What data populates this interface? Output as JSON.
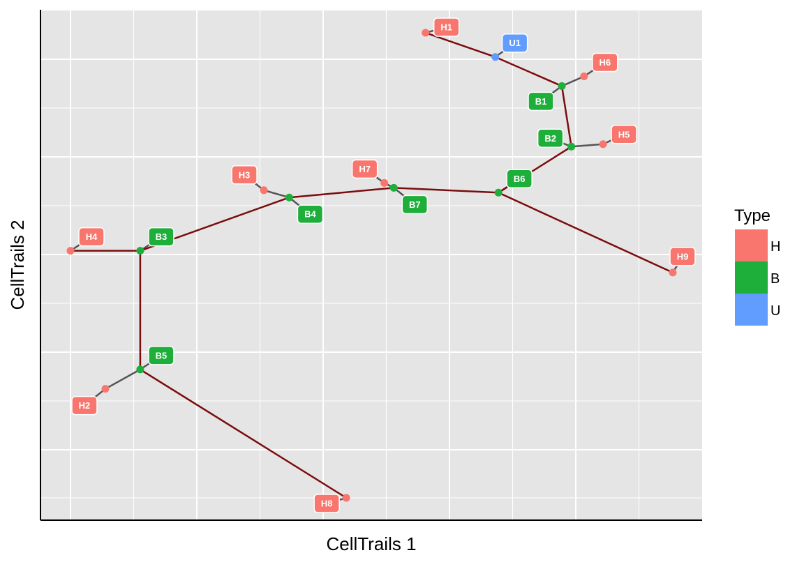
{
  "chart_data": {
    "type": "scatter",
    "xlabel": "CellTrails 1",
    "ylabel": "CellTrails 2",
    "grid": true,
    "tick_labels_shown": false,
    "legend": {
      "title": "Type",
      "placement": "right",
      "entries": [
        {
          "label": "H",
          "color": "#F8766D"
        },
        {
          "label": "B",
          "color": "#1EAE3A"
        },
        {
          "label": "U",
          "color": "#619CFF"
        }
      ]
    },
    "xlim": [
      -0.45,
      10.0
    ],
    "ylim": [
      -0.4,
      10.0
    ],
    "nodes": [
      {
        "id": "H1",
        "type": "H",
        "x": 5.6,
        "y": 9.6
      },
      {
        "id": "U1",
        "type": "U",
        "x": 6.7,
        "y": 9.1
      },
      {
        "id": "H6",
        "type": "H",
        "x": 8.1,
        "y": 8.7
      },
      {
        "id": "B1",
        "type": "B",
        "x": 7.75,
        "y": 8.5
      },
      {
        "id": "H5",
        "type": "H",
        "x": 8.4,
        "y": 7.3
      },
      {
        "id": "B2",
        "type": "B",
        "x": 7.9,
        "y": 7.25
      },
      {
        "id": "B6",
        "type": "B",
        "x": 6.75,
        "y": 6.3
      },
      {
        "id": "H7",
        "type": "H",
        "x": 4.95,
        "y": 6.5
      },
      {
        "id": "B7",
        "type": "B",
        "x": 5.1,
        "y": 6.4
      },
      {
        "id": "H3",
        "type": "H",
        "x": 3.05,
        "y": 6.35
      },
      {
        "id": "B4",
        "type": "B",
        "x": 3.45,
        "y": 6.2
      },
      {
        "id": "H4",
        "type": "H",
        "x": 0.0,
        "y": 5.1
      },
      {
        "id": "B3",
        "type": "B",
        "x": 1.1,
        "y": 5.1
      },
      {
        "id": "H9",
        "type": "H",
        "x": 9.5,
        "y": 4.65
      },
      {
        "id": "B5",
        "type": "B",
        "x": 1.1,
        "y": 2.65
      },
      {
        "id": "H2",
        "type": "H",
        "x": 0.55,
        "y": 2.25
      },
      {
        "id": "H8",
        "type": "H",
        "x": 4.35,
        "y": 0.0
      }
    ],
    "edges": [
      [
        "H1",
        "U1"
      ],
      [
        "U1",
        "B1"
      ],
      [
        "B1",
        "B2"
      ],
      [
        "B2",
        "B6"
      ],
      [
        "B6",
        "B7"
      ],
      [
        "B7",
        "B4"
      ],
      [
        "B4",
        "B3"
      ],
      [
        "B3",
        "H4"
      ],
      [
        "B3",
        "B5"
      ],
      [
        "B5",
        "H8"
      ],
      [
        "B6",
        "H9"
      ]
    ],
    "label_links": [
      [
        "B1",
        "H6"
      ],
      [
        "B2",
        "H5"
      ],
      [
        "B7",
        "H7"
      ],
      [
        "B4",
        "H3"
      ],
      [
        "B5",
        "H2"
      ]
    ]
  }
}
